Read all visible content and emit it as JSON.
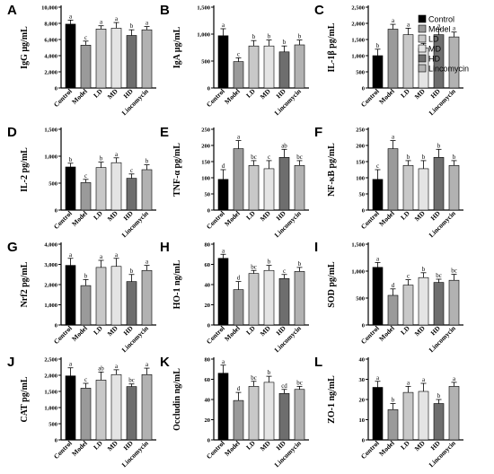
{
  "legend": {
    "entries": [
      {
        "label": "Control",
        "color": "#000000"
      },
      {
        "label": "Model",
        "color": "#9a9a9a"
      },
      {
        "label": "LD",
        "color": "#c8c8c8"
      },
      {
        "label": "MD",
        "color": "#e4e4e4"
      },
      {
        "label": "HD",
        "color": "#6e6e6e"
      },
      {
        "label": "Lincomycin",
        "color": "#b2b2b2"
      }
    ]
  },
  "chart_data": [
    {
      "panel": "A",
      "type": "bar",
      "ylabel": "IgG μg/mL",
      "ylim": [
        0,
        10000
      ],
      "yticks": [
        0,
        2000,
        4000,
        6000,
        8000,
        10000
      ],
      "ytick_labels": [
        "0",
        "2,000",
        "4,000",
        "6,000",
        "8,000",
        "10,000"
      ],
      "categories": [
        "Control",
        "Model",
        "LD",
        "MD",
        "HD",
        "Lincomycin"
      ],
      "values": [
        7900,
        5300,
        7300,
        7400,
        6500,
        7200
      ],
      "errors": [
        500,
        500,
        400,
        700,
        700,
        400
      ],
      "sig": [
        "a",
        "c",
        "a",
        "a",
        "b",
        "a"
      ]
    },
    {
      "panel": "B",
      "type": "bar",
      "ylabel": "IgA μg/mL",
      "ylim": [
        0,
        1500
      ],
      "yticks": [
        0,
        500,
        1000,
        1500
      ],
      "ytick_labels": [
        "0",
        "500",
        "1,000",
        "1,500"
      ],
      "categories": [
        "Control",
        "Model",
        "LD",
        "MD",
        "HD",
        "Lincomycin"
      ],
      "values": [
        970,
        490,
        780,
        780,
        670,
        800
      ],
      "errors": [
        130,
        70,
        100,
        110,
        110,
        90
      ],
      "sig": [
        "a",
        "c",
        "b",
        "b",
        "b",
        "b"
      ]
    },
    {
      "panel": "C",
      "type": "bar",
      "ylabel": "IL-1β pg/mL",
      "ylim": [
        0,
        2500
      ],
      "yticks": [
        0,
        500,
        1000,
        1500,
        2000,
        2500
      ],
      "ytick_labels": [
        "0",
        "500",
        "1,000",
        "1,500",
        "2,000",
        "2,500"
      ],
      "categories": [
        "Control",
        "Model",
        "LD",
        "MD",
        "HD",
        "Lincomycin"
      ],
      "values": [
        1000,
        1820,
        1650,
        1230,
        1650,
        1580
      ],
      "errors": [
        200,
        150,
        200,
        150,
        170,
        150
      ],
      "sig": [
        "b",
        "a",
        "a",
        "b",
        "a",
        "a"
      ]
    },
    {
      "panel": "D",
      "type": "bar",
      "ylabel": "IL-2 pg/mL",
      "ylim": [
        0,
        1500
      ],
      "yticks": [
        0,
        500,
        1000,
        1500
      ],
      "ytick_labels": [
        "0",
        "500",
        "1,000",
        "1,500"
      ],
      "categories": [
        "Control",
        "Model",
        "LD",
        "MD",
        "HD",
        "Lincomycin"
      ],
      "values": [
        800,
        510,
        790,
        880,
        590,
        750
      ],
      "errors": [
        70,
        60,
        100,
        90,
        80,
        90
      ],
      "sig": [
        "b",
        "c",
        "b",
        "a",
        "c",
        "b"
      ]
    },
    {
      "panel": "E",
      "type": "bar",
      "ylabel": "TNF-α pg/mL",
      "ylim": [
        0,
        250
      ],
      "yticks": [
        0,
        50,
        100,
        150,
        200,
        250
      ],
      "ytick_labels": [
        "0",
        "50",
        "100",
        "150",
        "200",
        "250"
      ],
      "categories": [
        "Control",
        "Model",
        "LD",
        "MD",
        "HD",
        "Lincomycin"
      ],
      "values": [
        95,
        190,
        138,
        128,
        163,
        138
      ],
      "errors": [
        30,
        25,
        15,
        25,
        25,
        15
      ],
      "sig": [
        "d",
        "a",
        "bc",
        "c",
        "ab",
        "bc"
      ]
    },
    {
      "panel": "F",
      "type": "bar",
      "ylabel": "NF-κB pg/mL",
      "ylim": [
        0,
        250
      ],
      "yticks": [
        0,
        50,
        100,
        150,
        200,
        250
      ],
      "ytick_labels": [
        "0",
        "50",
        "100",
        "150",
        "200",
        "250"
      ],
      "categories": [
        "Control",
        "Model",
        "LD",
        "MD",
        "HD",
        "Lincomycin"
      ],
      "values": [
        95,
        190,
        138,
        128,
        163,
        138
      ],
      "errors": [
        30,
        25,
        15,
        25,
        25,
        15
      ],
      "sig": [
        "c",
        "a",
        "b",
        "b",
        "b",
        "b"
      ]
    },
    {
      "panel": "G",
      "type": "bar",
      "ylabel": "Nrf2 pg/mL",
      "ylim": [
        0,
        4000
      ],
      "yticks": [
        0,
        1000,
        2000,
        3000,
        4000
      ],
      "ytick_labels": [
        "0",
        "1,000",
        "2,000",
        "3,000",
        "4,000"
      ],
      "categories": [
        "Control",
        "Model",
        "LD",
        "MD",
        "HD",
        "Lincomycin"
      ],
      "values": [
        2950,
        1950,
        2850,
        2900,
        2150,
        2700
      ],
      "errors": [
        350,
        300,
        350,
        400,
        350,
        250
      ],
      "sig": [
        "a",
        "b",
        "a",
        "a",
        "b",
        "a"
      ]
    },
    {
      "panel": "H",
      "type": "bar",
      "ylabel": "HO-1 ng/mL",
      "ylim": [
        0,
        80
      ],
      "yticks": [
        0,
        20,
        40,
        60,
        80
      ],
      "ytick_labels": [
        "0",
        "20",
        "40",
        "60",
        "80"
      ],
      "categories": [
        "Control",
        "Model",
        "LD",
        "MD",
        "HD",
        "Lincomycin"
      ],
      "values": [
        66,
        35,
        51,
        54,
        46,
        53
      ],
      "errors": [
        4,
        8,
        3,
        5,
        4,
        4
      ],
      "sig": [
        "a",
        "d",
        "bc",
        "b",
        "c",
        "b"
      ]
    },
    {
      "panel": "I",
      "type": "bar",
      "ylabel": "SOD pg/mL",
      "ylim": [
        0,
        1500
      ],
      "yticks": [
        0,
        500,
        1000,
        1500
      ],
      "ytick_labels": [
        "0",
        "500",
        "1,000",
        "1,500"
      ],
      "categories": [
        "Control",
        "Model",
        "LD",
        "MD",
        "HD",
        "Lincomycin"
      ],
      "values": [
        1070,
        550,
        740,
        880,
        790,
        830
      ],
      "errors": [
        90,
        120,
        100,
        90,
        60,
        110
      ],
      "sig": [
        "a",
        "d",
        "c",
        "b",
        "bc",
        "bc"
      ]
    },
    {
      "panel": "J",
      "type": "bar",
      "ylabel": "CAT pg/mL",
      "ylim": [
        0,
        2500
      ],
      "yticks": [
        0,
        500,
        1000,
        1500,
        2000,
        2500
      ],
      "ytick_labels": [
        "0",
        "500",
        "1,000",
        "1,500",
        "2,000",
        "2,500"
      ],
      "categories": [
        "Control",
        "Model",
        "LD",
        "MD",
        "HD",
        "Lincomycin"
      ],
      "values": [
        1980,
        1600,
        1850,
        2020,
        1650,
        2020
      ],
      "errors": [
        250,
        150,
        250,
        150,
        80,
        200
      ],
      "sig": [
        "a",
        "c",
        "ab",
        "a",
        "bc",
        "a"
      ]
    },
    {
      "panel": "K",
      "type": "bar",
      "ylabel": "Occludin ng/mL",
      "ylim": [
        0,
        80
      ],
      "yticks": [
        0,
        20,
        40,
        60,
        80
      ],
      "ytick_labels": [
        "0",
        "20",
        "40",
        "60",
        "80"
      ],
      "categories": [
        "Control",
        "Model",
        "LD",
        "MD",
        "HD",
        "Lincomycin"
      ],
      "values": [
        66,
        39,
        53,
        57,
        46,
        50
      ],
      "errors": [
        8,
        8,
        5,
        6,
        4,
        3
      ],
      "sig": [
        "a",
        "d",
        "bc",
        "b",
        "cd",
        "bc"
      ]
    },
    {
      "panel": "L",
      "type": "bar",
      "ylabel": "ZO-1 ng/mL",
      "ylim": [
        0,
        40
      ],
      "yticks": [
        0,
        10,
        20,
        30,
        40
      ],
      "ytick_labels": [
        "0",
        "10",
        "20",
        "30",
        "40"
      ],
      "categories": [
        "Control",
        "Model",
        "LD",
        "MD",
        "HD",
        "Lincomycin"
      ],
      "values": [
        26,
        15,
        23.5,
        24,
        18,
        26.5
      ],
      "errors": [
        3,
        3,
        3,
        4,
        2,
        2
      ],
      "sig": [
        "a",
        "b",
        "a",
        "a",
        "b",
        "a"
      ]
    }
  ]
}
